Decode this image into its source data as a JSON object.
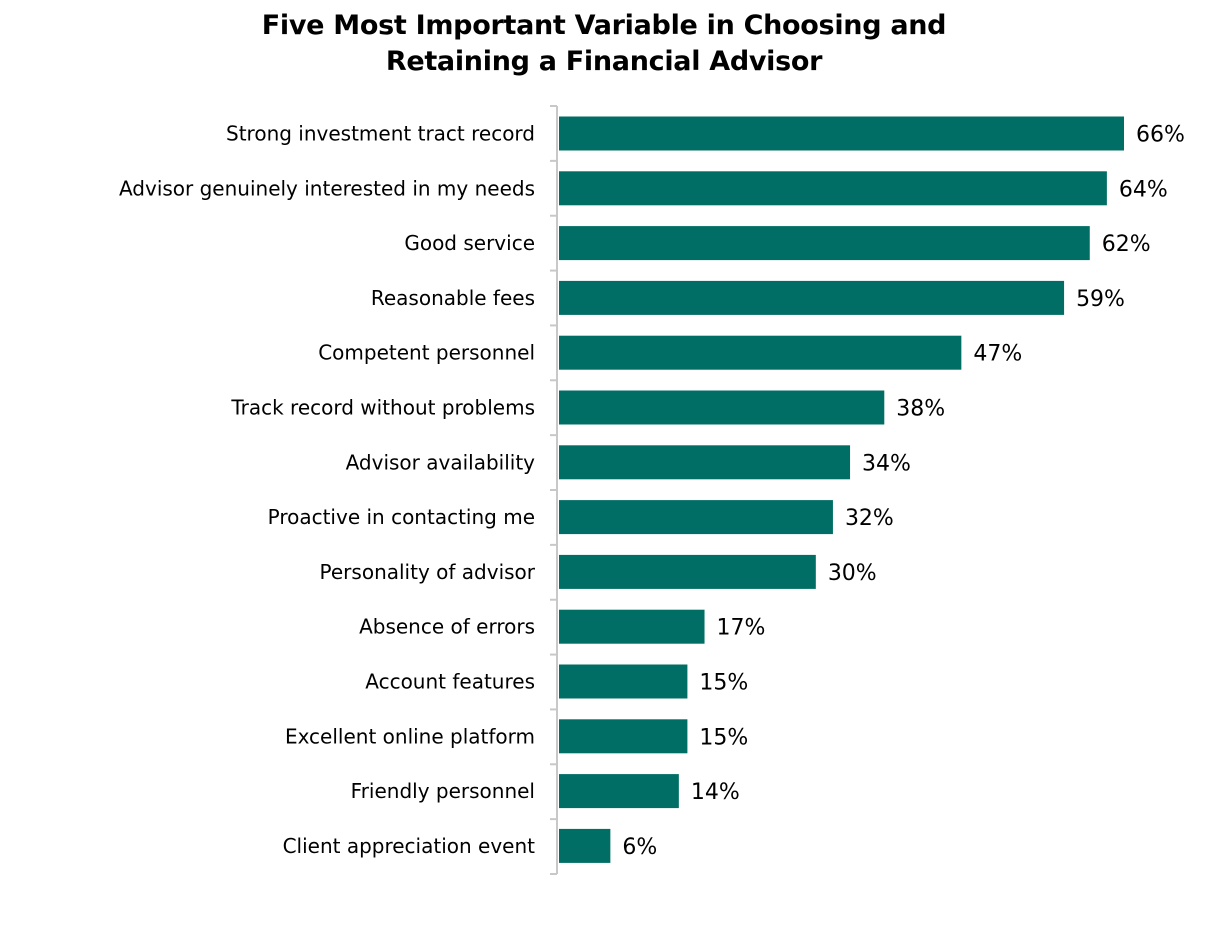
{
  "chart_data": {
    "type": "bar",
    "orientation": "horizontal",
    "title_lines": [
      "Five Most Important Variable in Choosing and",
      "Retaining a Financial Advisor"
    ],
    "xlabel": "",
    "ylabel": "",
    "xlim": [
      0,
      66
    ],
    "grid": false,
    "legend": "none",
    "bar_color": "#006E65",
    "axis_color": "#C8C8C8",
    "value_suffix": "%",
    "categories": [
      "Strong investment tract record",
      "Advisor genuinely interested in my needs",
      "Good service",
      "Reasonable fees",
      "Competent personnel",
      "Track record without problems",
      "Advisor availability",
      "Proactive in contacting me",
      "Personality of advisor",
      "Absence of errors",
      "Account features",
      "Excellent online platform",
      "Friendly personnel",
      "Client appreciation event"
    ],
    "values": [
      66,
      64,
      62,
      59,
      47,
      38,
      34,
      32,
      30,
      17,
      15,
      15,
      14,
      6
    ]
  }
}
